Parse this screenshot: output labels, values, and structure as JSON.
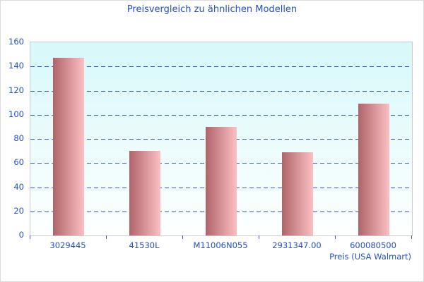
{
  "chart_data": {
    "type": "bar",
    "title": "Preisvergleich zu ähnlichen Modellen",
    "categories": [
      "3029445",
      "41530L",
      "M11006N055",
      "2931347.00",
      "600080500"
    ],
    "values": [
      147,
      70,
      90,
      69,
      109
    ],
    "xlabel": "Preis (USA Walmart)",
    "ylabel": "",
    "ylim": [
      0,
      160
    ],
    "ytick_step": 20,
    "yticks": [
      0,
      20,
      40,
      60,
      80,
      100,
      120,
      140,
      160
    ],
    "grid": "horizontal-dashed",
    "legend": "none",
    "colors": {
      "text": "#2350c8",
      "grid": "#3558c0",
      "bar_gradient_left": "#b0646a",
      "bar_gradient_right": "#fcc0c2",
      "plot_bg_top": "#d7f8fa",
      "plot_bg_bottom": "#feffff",
      "plot_border": "#cccccc"
    }
  }
}
